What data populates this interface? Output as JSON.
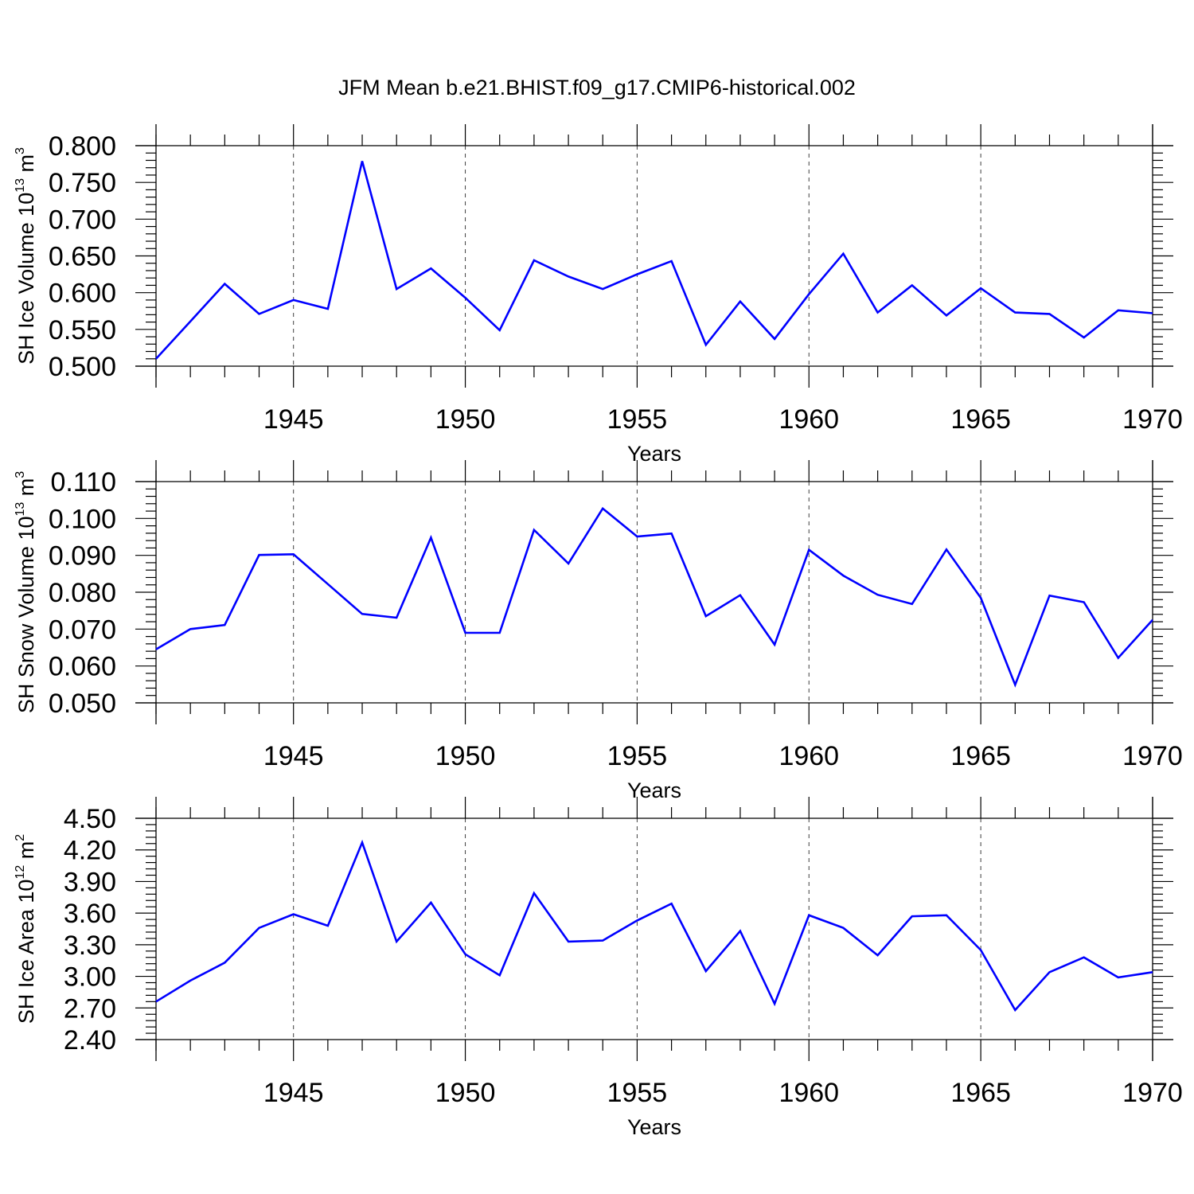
{
  "figure_title": "JFM Mean b.e21.BHIST.f09_g17.CMIP6-historical.002",
  "colors": {
    "series": "#0000ff",
    "axes": "#000000",
    "background": "#ffffff"
  },
  "chart_data": [
    {
      "type": "line",
      "series_name": "SH Ice Volume",
      "ylabel_text": "SH Ice Volume 10",
      "ylabel_exp": "13",
      "ylabel_unit": " m",
      "ylabel_unit_exp": "3",
      "xlabel": "Years",
      "xlim": [
        1941,
        1970
      ],
      "ylim": [
        0.5,
        0.8
      ],
      "yticks": [
        "0.500",
        "0.550",
        "0.600",
        "0.650",
        "0.700",
        "0.750",
        "0.800"
      ],
      "xticks": [
        "1945",
        "1950",
        "1955",
        "1960",
        "1965",
        "1970"
      ],
      "grid": "vertical dashed at 1945, 1950, 1955, 1960, 1965",
      "x": [
        1941,
        1942,
        1943,
        1944,
        1945,
        1946,
        1947,
        1948,
        1949,
        1950,
        1951,
        1952,
        1953,
        1954,
        1955,
        1956,
        1957,
        1958,
        1959,
        1960,
        1961,
        1962,
        1963,
        1964,
        1965,
        1966,
        1967,
        1968,
        1969,
        1970
      ],
      "values": [
        0.51,
        0.561,
        0.612,
        0.571,
        0.59,
        0.578,
        0.779,
        0.605,
        0.633,
        0.593,
        0.549,
        0.644,
        0.622,
        0.605,
        0.625,
        0.643,
        0.529,
        0.588,
        0.537,
        0.598,
        0.653,
        0.573,
        0.61,
        0.569,
        0.606,
        0.573,
        0.571,
        0.539,
        0.576,
        0.572
      ]
    },
    {
      "type": "line",
      "series_name": "SH Snow Volume",
      "ylabel_text": "SH Snow Volume 10",
      "ylabel_exp": "13",
      "ylabel_unit": " m",
      "ylabel_unit_exp": "3",
      "xlabel": "Years",
      "xlim": [
        1941,
        1970
      ],
      "ylim": [
        0.05,
        0.11
      ],
      "yticks": [
        "0.050",
        "0.060",
        "0.070",
        "0.080",
        "0.090",
        "0.100",
        "0.110"
      ],
      "xticks": [
        "1945",
        "1950",
        "1955",
        "1960",
        "1965",
        "1970"
      ],
      "grid": "vertical dashed at 1945, 1950, 1955, 1960, 1965",
      "x": [
        1941,
        1942,
        1943,
        1944,
        1945,
        1946,
        1947,
        1948,
        1949,
        1950,
        1951,
        1952,
        1953,
        1954,
        1955,
        1956,
        1957,
        1958,
        1959,
        1960,
        1961,
        1962,
        1963,
        1964,
        1965,
        1966,
        1967,
        1968,
        1969,
        1970
      ],
      "values": [
        0.0645,
        0.07,
        0.0711,
        0.0901,
        0.0903,
        0.0822,
        0.0741,
        0.0731,
        0.0948,
        0.069,
        0.069,
        0.0969,
        0.0878,
        0.1027,
        0.0951,
        0.0959,
        0.0735,
        0.0792,
        0.0658,
        0.0915,
        0.0845,
        0.0793,
        0.0768,
        0.0916,
        0.0785,
        0.0549,
        0.0791,
        0.0773,
        0.0622,
        0.0725
      ]
    },
    {
      "type": "line",
      "series_name": "SH Ice Area",
      "ylabel_text": "SH Ice Area 10",
      "ylabel_exp": "12",
      "ylabel_unit": " m",
      "ylabel_unit_exp": "2",
      "xlabel": "Years",
      "xlim": [
        1941,
        1970
      ],
      "ylim": [
        2.4,
        4.5
      ],
      "yticks": [
        "2.40",
        "2.70",
        "3.00",
        "3.30",
        "3.60",
        "3.90",
        "4.20",
        "4.50"
      ],
      "xticks": [
        "1945",
        "1950",
        "1955",
        "1960",
        "1965",
        "1970"
      ],
      "grid": "vertical dashed at 1945, 1950, 1955, 1960, 1965",
      "x": [
        1941,
        1942,
        1943,
        1944,
        1945,
        1946,
        1947,
        1948,
        1949,
        1950,
        1951,
        1952,
        1953,
        1954,
        1955,
        1956,
        1957,
        1958,
        1959,
        1960,
        1961,
        1962,
        1963,
        1964,
        1965,
        1966,
        1967,
        1968,
        1969,
        1970
      ],
      "values": [
        2.76,
        2.96,
        3.13,
        3.46,
        3.59,
        3.48,
        4.27,
        3.33,
        3.7,
        3.21,
        3.01,
        3.79,
        3.33,
        3.34,
        3.53,
        3.69,
        3.05,
        3.43,
        2.74,
        3.58,
        3.46,
        3.2,
        3.57,
        3.58,
        3.25,
        2.68,
        3.04,
        3.18,
        2.99,
        3.04
      ]
    }
  ]
}
